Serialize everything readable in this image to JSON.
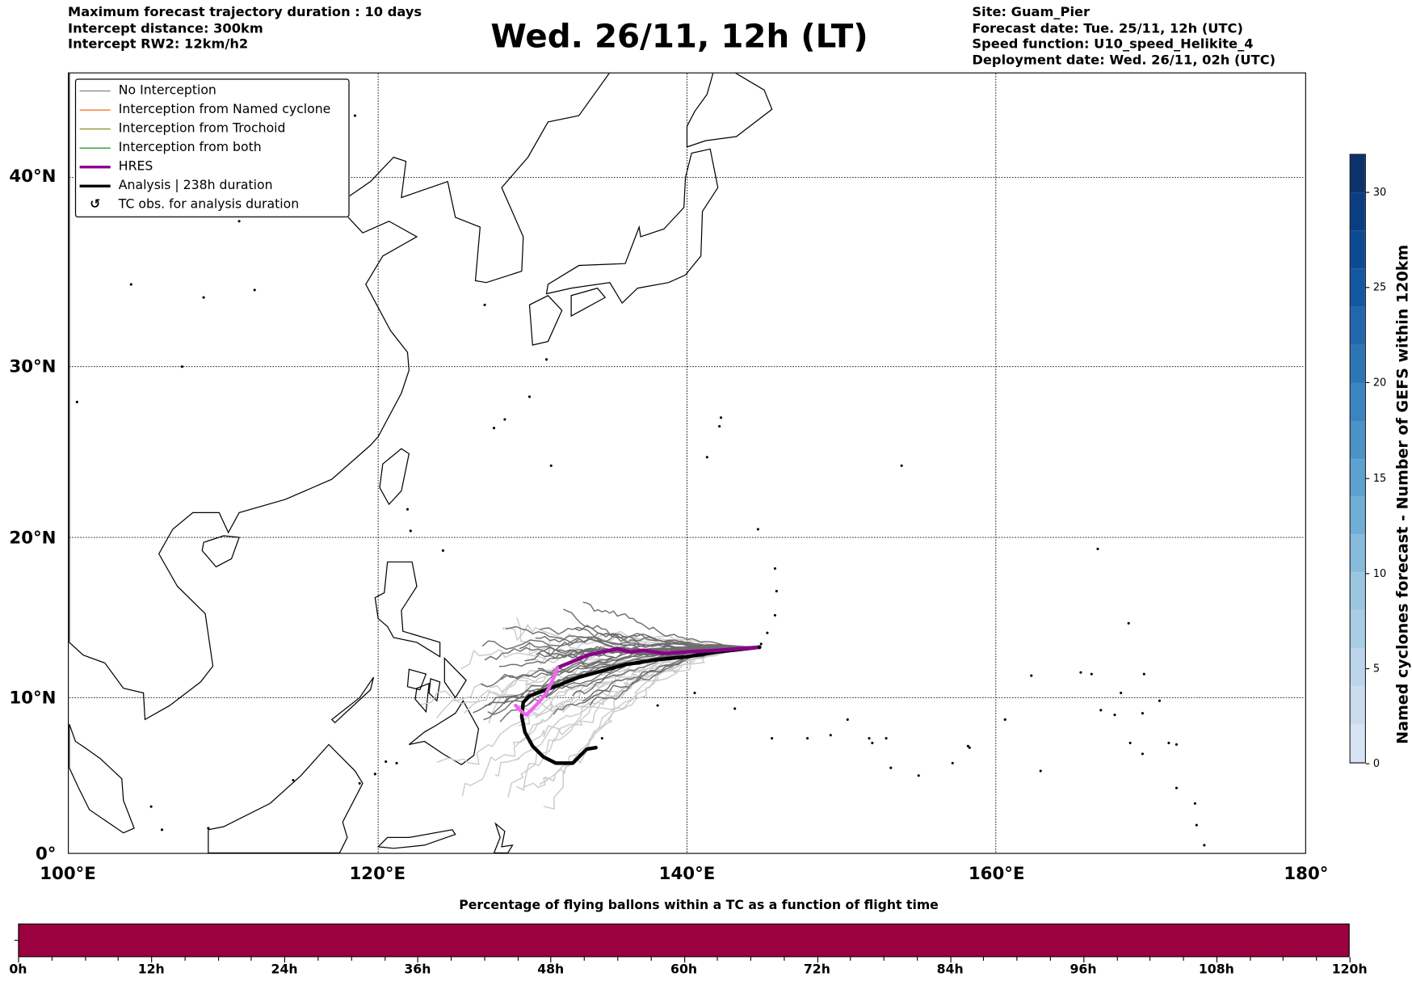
{
  "header": {
    "left": [
      "Maximum forecast trajectory duration : 10 days",
      "Intercept distance: 300km",
      "Intercept RW2: 12km/h2"
    ],
    "title": "Wed. 26/11, 12h (LT)",
    "right": [
      "Site: Guam_Pier",
      "Forecast date: Tue. 25/11, 12h (UTC)",
      "Speed function: U10_speed_Helikite_4",
      "Deployment date: Wed. 26/11, 02h (UTC)"
    ]
  },
  "legend": [
    {
      "label": "No Interception",
      "color": "#777777"
    },
    {
      "label": "Interception from Named cyclone",
      "color": "#ff5500"
    },
    {
      "label": "Interception from Trochoid",
      "color": "#808000"
    },
    {
      "label": "Interception from both",
      "color": "#008000"
    },
    {
      "label": "HRES",
      "color": "#8b008b"
    },
    {
      "label": "Analysis | 238h duration",
      "color": "#000000"
    },
    {
      "label": "TC obs. for analysis duration",
      "icon": "cyclone-symbol"
    }
  ],
  "chart_data": [
    {
      "type": "map-trajectories",
      "title": "Wed. 26/11, 12h (LT)",
      "lon_range": [
        100,
        180
      ],
      "lat_range": [
        0,
        45.5
      ],
      "lon_ticks": [
        "100°E",
        "120°E",
        "140°E",
        "160°E",
        "180°"
      ],
      "lon_tick_values": [
        100,
        120,
        140,
        160,
        180
      ],
      "lat_ticks": [
        "0°",
        "10°N",
        "20°N",
        "30°N",
        "40°N"
      ],
      "lat_tick_values": [
        0,
        10,
        20,
        30,
        40
      ],
      "grid": true,
      "legend_position": "top-left",
      "site": {
        "name": "Guam_Pier",
        "lon": 144.7,
        "lat": 13.2
      },
      "series": [
        {
          "name": "Analysis | 238h duration",
          "color": "#000000",
          "points": [
            [
              144.7,
              13.2
            ],
            [
              142,
              12.9
            ],
            [
              140,
              12.6
            ],
            [
              138,
              12.4
            ],
            [
              136,
              12.1
            ],
            [
              134.5,
              11.7
            ],
            [
              133,
              11.3
            ],
            [
              131.7,
              10.8
            ],
            [
              130.6,
              10.4
            ],
            [
              129.8,
              10.1
            ],
            [
              129.4,
              9.7
            ],
            [
              129.3,
              8.8
            ],
            [
              129.5,
              7.8
            ],
            [
              130,
              6.9
            ],
            [
              130.7,
              6.2
            ],
            [
              131.5,
              5.8
            ],
            [
              132.6,
              5.8
            ],
            [
              133.1,
              6.3
            ],
            [
              133.5,
              6.7
            ],
            [
              134.1,
              6.8
            ]
          ]
        },
        {
          "name": "HRES",
          "color": "#8b008b",
          "points": [
            [
              144.7,
              13.2
            ],
            [
              142,
              13.0
            ],
            [
              140,
              12.9
            ],
            [
              138.5,
              12.8
            ],
            [
              137.2,
              13.0
            ],
            [
              136.3,
              12.9
            ],
            [
              135.5,
              13.1
            ],
            [
              134.5,
              12.9
            ],
            [
              133.6,
              12.7
            ],
            [
              132.6,
              12.3
            ],
            [
              131.6,
              11.9
            ]
          ]
        },
        {
          "name": "HRES (extended)",
          "color": "#ee66ee",
          "points": [
            [
              131.6,
              11.9
            ],
            [
              131.3,
              11.1
            ],
            [
              130.9,
              10.3
            ],
            [
              130.4,
              9.7
            ],
            [
              129.9,
              9.2
            ],
            [
              129.6,
              8.9
            ],
            [
              129.3,
              9.1
            ],
            [
              128.9,
              9.5
            ]
          ]
        }
      ],
      "ensemble_no_interception_dark": 30,
      "ensemble_no_interception_light": 22
    },
    {
      "type": "colorbar",
      "label": "Named cyclones forecast - Number of GEFS within 120km",
      "range": [
        0,
        32
      ],
      "ticks": [
        "0",
        "5",
        "10",
        "15",
        "20",
        "25",
        "30"
      ],
      "tick_values": [
        0,
        5,
        10,
        15,
        20,
        25,
        30
      ],
      "colors": [
        "#d6e4f4",
        "#c9dcf0",
        "#bcd5ec",
        "#a8cde4",
        "#9ac6e0",
        "#86bbdb",
        "#6faed6",
        "#5ca1cf",
        "#4a93c7",
        "#3a85c0",
        "#2d76b6",
        "#2067ad",
        "#1558a2",
        "#0c4b94",
        "#0a3e83",
        "#0b326b"
      ]
    },
    {
      "type": "bar",
      "title": "Percentage of flying ballons within a TC as a function of flight time",
      "x_ticks": [
        "0h",
        "12h",
        "24h",
        "36h",
        "48h",
        "60h",
        "72h",
        "84h",
        "96h",
        "108h",
        "120h"
      ],
      "x_range_hours": [
        0,
        120
      ],
      "fill_color": "#9b003f",
      "minor_tick_step_hours": 3
    }
  ]
}
